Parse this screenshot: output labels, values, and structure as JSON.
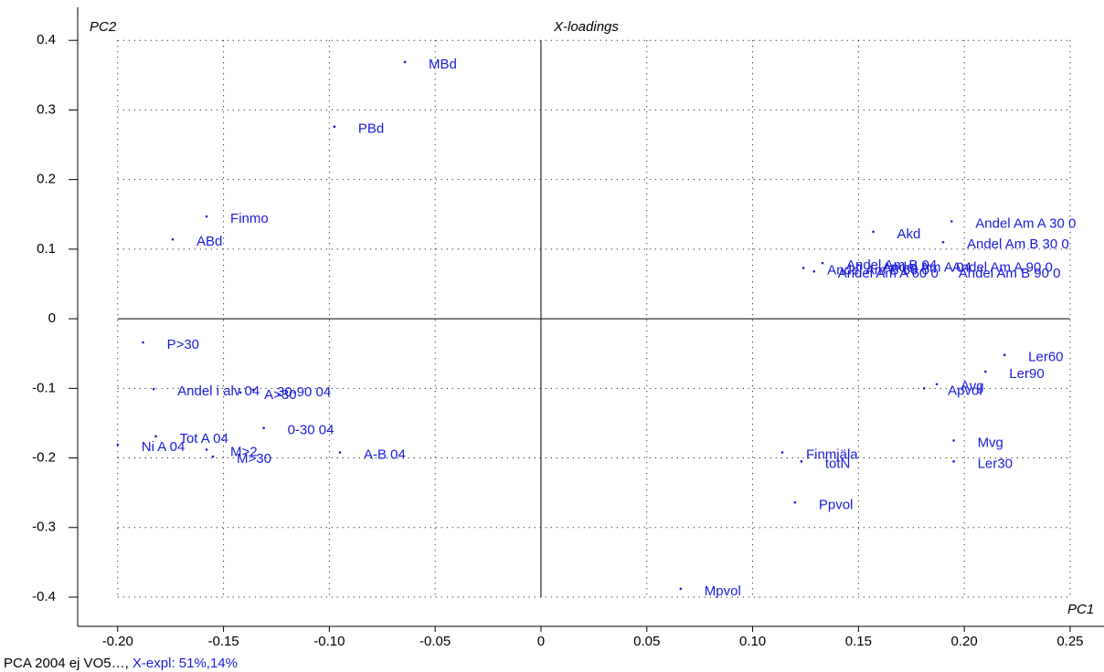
{
  "chart_data": {
    "type": "scatter",
    "title": "X-loadings",
    "x_label": "PC1",
    "y_label": "PC2",
    "footer": "PCA 2004 ej VO5…,",
    "footer_note": "X-expl: 51%,14%",
    "color": "#1a1adc",
    "grid": true,
    "xlim": [
      -0.2189,
      0.266
    ],
    "ylim": [
      -0.442,
      0.4475
    ],
    "xticks": [
      {
        "value": -0.2,
        "label": "-0.20"
      },
      {
        "value": -0.15,
        "label": "-0.15"
      },
      {
        "value": -0.1,
        "label": "-0.10"
      },
      {
        "value": -0.05,
        "label": "-0.05"
      },
      0,
      {
        "value": 0.05,
        "label": "0.05"
      },
      {
        "value": 0.1,
        "label": "0.10"
      },
      {
        "value": 0.15,
        "label": "0.15"
      },
      {
        "value": 0.2,
        "label": "0.20"
      },
      {
        "value": 0.25,
        "label": "0.25"
      }
    ],
    "yticks": [
      -0.4,
      -0.3,
      -0.2,
      -0.1,
      0,
      0.1,
      0.2,
      0.3,
      0.4
    ],
    "point_labels": [
      "MBd",
      "PBd",
      "Finmo",
      "ABd",
      "P>30",
      "Andel i alv 04",
      "30-90 04",
      "A>30",
      "0-30 04",
      "Tot A 04",
      "Ni A 04",
      "M>2",
      "M>30",
      "A-B 04",
      "Mpvol",
      "Ppvol",
      "Finmjäla",
      "totN",
      "Ler30",
      "Mvg",
      "Ler60",
      "Ler90",
      "Avg",
      "Apvol",
      "Akd",
      "Andel Am A 30 0",
      "Andel Am B 30 0",
      "Andel Am A 04",
      "Andel Am B 04",
      "Andel Am B 60 0",
      "Andel Am A 60 0",
      "Andel Am A 90 0",
      "Andel Am B 90 0"
    ],
    "x": [
      -0.0643,
      -0.0976,
      -0.158,
      -0.174,
      -0.188,
      -0.183,
      -0.136,
      -0.142,
      -0.131,
      -0.182,
      -0.2,
      -0.158,
      -0.155,
      -0.095,
      0.066,
      0.12,
      0.114,
      0.123,
      0.195,
      0.195,
      0.219,
      0.21,
      0.187,
      0.181,
      0.157,
      0.194,
      0.19,
      0.15,
      0.133,
      0.124,
      0.129,
      0.183,
      0.186
    ],
    "values": [
      0.369,
      0.276,
      0.147,
      0.114,
      -0.034,
      -0.101,
      -0.102,
      -0.106,
      -0.157,
      -0.169,
      -0.181,
      -0.188,
      -0.198,
      -0.192,
      -0.388,
      -0.264,
      -0.192,
      -0.205,
      -0.205,
      -0.175,
      -0.052,
      -0.076,
      -0.094,
      -0.1,
      0.125,
      0.14,
      0.11,
      0.077,
      0.08,
      0.073,
      0.068,
      0.077,
      0.068
    ]
  }
}
